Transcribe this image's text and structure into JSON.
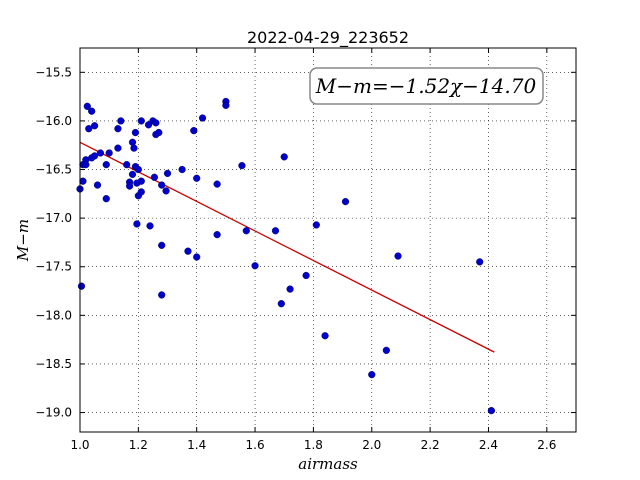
{
  "chart_data": {
    "type": "scatter",
    "title": "2022-04-29_223652",
    "xlabel": "airmass",
    "ylabel": "M−m",
    "xlim": [
      1.0,
      2.7
    ],
    "ylim": [
      -19.2,
      -15.25
    ],
    "y_inverted": true,
    "grid": true,
    "grid_style": "dotted",
    "xticks": [
      "1.0",
      "1.2",
      "1.4",
      "1.6",
      "1.8",
      "2.0",
      "2.2",
      "2.4",
      "2.6"
    ],
    "yticks": [
      "−15.5",
      "−16.0",
      "−16.5",
      "−17.0",
      "−17.5",
      "−18.0",
      "−18.5",
      "−19.0"
    ],
    "annotation": "M−m=−1.52χ−14.70",
    "marker_color": "#0000cc",
    "fit_color": "#cc0000",
    "fit_line": {
      "slope": -1.52,
      "intercept": -14.7,
      "x_range": [
        1.0,
        2.42
      ]
    },
    "points": [
      {
        "x": 1.0,
        "y": -16.7
      },
      {
        "x": 1.005,
        "y": -17.7
      },
      {
        "x": 1.01,
        "y": -16.45
      },
      {
        "x": 1.01,
        "y": -16.62
      },
      {
        "x": 1.02,
        "y": -16.4
      },
      {
        "x": 1.02,
        "y": -16.45
      },
      {
        "x": 1.025,
        "y": -15.85
      },
      {
        "x": 1.03,
        "y": -16.08
      },
      {
        "x": 1.04,
        "y": -15.9
      },
      {
        "x": 1.04,
        "y": -16.38
      },
      {
        "x": 1.05,
        "y": -16.05
      },
      {
        "x": 1.05,
        "y": -16.36
      },
      {
        "x": 1.06,
        "y": -16.66
      },
      {
        "x": 1.07,
        "y": -16.33
      },
      {
        "x": 1.09,
        "y": -16.45
      },
      {
        "x": 1.09,
        "y": -16.8
      },
      {
        "x": 1.1,
        "y": -16.33
      },
      {
        "x": 1.13,
        "y": -16.08
      },
      {
        "x": 1.13,
        "y": -16.28
      },
      {
        "x": 1.14,
        "y": -16.0
      },
      {
        "x": 1.16,
        "y": -16.45
      },
      {
        "x": 1.17,
        "y": -16.63
      },
      {
        "x": 1.17,
        "y": -16.67
      },
      {
        "x": 1.18,
        "y": -16.22
      },
      {
        "x": 1.18,
        "y": -16.55
      },
      {
        "x": 1.185,
        "y": -16.28
      },
      {
        "x": 1.19,
        "y": -16.12
      },
      {
        "x": 1.19,
        "y": -16.47
      },
      {
        "x": 1.195,
        "y": -16.64
      },
      {
        "x": 1.195,
        "y": -17.06
      },
      {
        "x": 1.2,
        "y": -16.5
      },
      {
        "x": 1.2,
        "y": -16.77
      },
      {
        "x": 1.21,
        "y": -16.62
      },
      {
        "x": 1.21,
        "y": -16.73
      },
      {
        "x": 1.21,
        "y": -16.0
      },
      {
        "x": 1.235,
        "y": -16.04
      },
      {
        "x": 1.24,
        "y": -17.08
      },
      {
        "x": 1.25,
        "y": -16.0
      },
      {
        "x": 1.255,
        "y": -16.58
      },
      {
        "x": 1.26,
        "y": -16.14
      },
      {
        "x": 1.26,
        "y": -16.02
      },
      {
        "x": 1.27,
        "y": -16.12
      },
      {
        "x": 1.28,
        "y": -16.66
      },
      {
        "x": 1.28,
        "y": -17.28
      },
      {
        "x": 1.28,
        "y": -17.79
      },
      {
        "x": 1.295,
        "y": -16.72
      },
      {
        "x": 1.3,
        "y": -16.54
      },
      {
        "x": 1.35,
        "y": -16.5
      },
      {
        "x": 1.37,
        "y": -17.34
      },
      {
        "x": 1.39,
        "y": -16.1
      },
      {
        "x": 1.4,
        "y": -16.59
      },
      {
        "x": 1.4,
        "y": -17.4
      },
      {
        "x": 1.42,
        "y": -15.97
      },
      {
        "x": 1.47,
        "y": -16.65
      },
      {
        "x": 1.47,
        "y": -17.17
      },
      {
        "x": 1.5,
        "y": -15.8
      },
      {
        "x": 1.5,
        "y": -15.84
      },
      {
        "x": 1.555,
        "y": -16.46
      },
      {
        "x": 1.57,
        "y": -17.13
      },
      {
        "x": 1.6,
        "y": -17.49
      },
      {
        "x": 1.67,
        "y": -17.13
      },
      {
        "x": 1.69,
        "y": -17.88
      },
      {
        "x": 1.7,
        "y": -16.37
      },
      {
        "x": 1.72,
        "y": -17.73
      },
      {
        "x": 1.775,
        "y": -17.59
      },
      {
        "x": 1.81,
        "y": -17.07
      },
      {
        "x": 1.84,
        "y": -18.21
      },
      {
        "x": 1.91,
        "y": -16.83
      },
      {
        "x": 2.0,
        "y": -18.61
      },
      {
        "x": 2.05,
        "y": -18.36
      },
      {
        "x": 2.09,
        "y": -17.39
      },
      {
        "x": 2.37,
        "y": -17.45
      },
      {
        "x": 2.41,
        "y": -18.98
      }
    ]
  }
}
